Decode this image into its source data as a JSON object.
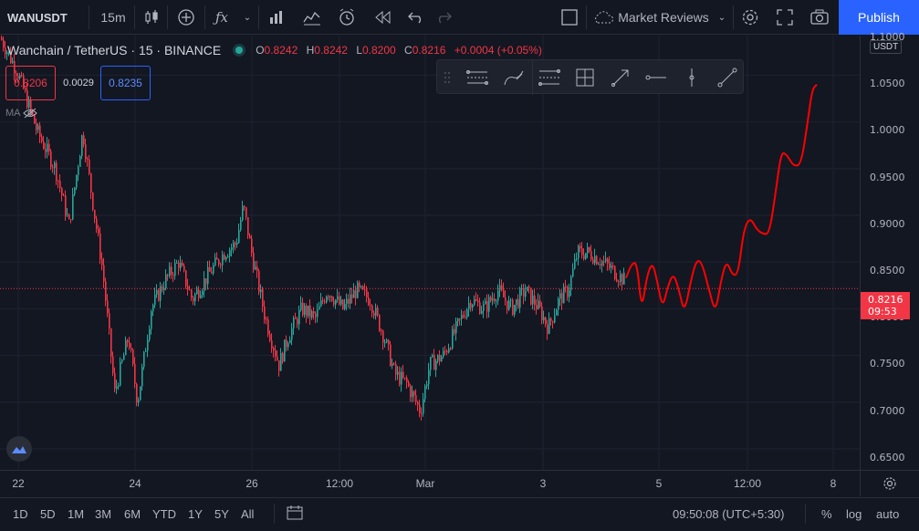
{
  "toolbar": {
    "symbol": "WANUSDT",
    "interval": "15m",
    "indicators_icon": "fx-icon",
    "layout_name": "Market Reviews",
    "publish_label": "Publish"
  },
  "legend": {
    "title": "Wanchain / TetherUS · 15 · BINANCE",
    "o_label": "O",
    "o_value": "0.8242",
    "h_label": "H",
    "h_value": "0.8242",
    "l_label": "L",
    "l_value": "0.8200",
    "c_label": "C",
    "c_value": "0.8216",
    "change": "+0.0004 (+0.05%)",
    "status_color": "#26a69a"
  },
  "orderbook": {
    "bid": "0.8206",
    "spread": "0.0029",
    "ask": "0.8235"
  },
  "ma_label": "MA",
  "price_axis": {
    "currency": "USDT",
    "ticks": [
      "1.1000",
      "1.0500",
      "1.0000",
      "0.9500",
      "0.9000",
      "0.8500",
      "0.8000",
      "0.7500",
      "0.7000",
      "0.6500"
    ],
    "current_price": "0.8216",
    "countdown": "09:53"
  },
  "time_axis": {
    "ticks": [
      "22",
      "24",
      "26",
      "12:00",
      "Mar",
      "3",
      "5",
      "12:00",
      "8"
    ]
  },
  "bottom": {
    "ranges": [
      "1D",
      "5D",
      "1M",
      "3M",
      "6M",
      "YTD",
      "1Y",
      "5Y",
      "All"
    ],
    "clock": "09:50:08 (UTC+5:30)",
    "percent": "%",
    "log": "log",
    "auto": "auto"
  },
  "colors": {
    "up": "#26a69a",
    "down": "#f23645",
    "projection": "#ff0000",
    "accent": "#2962ff"
  }
}
